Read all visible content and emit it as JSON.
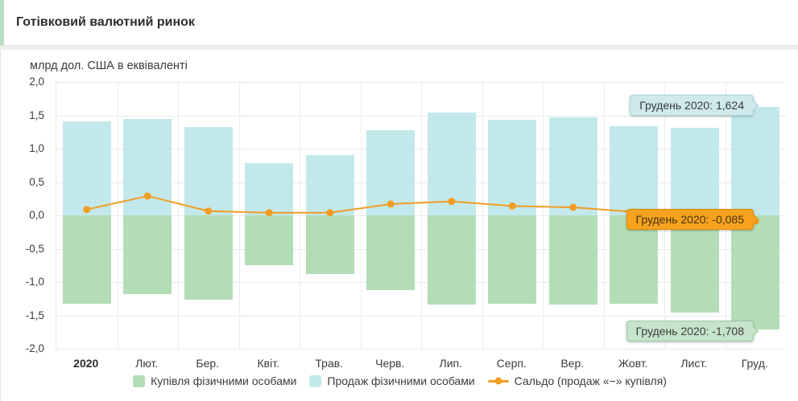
{
  "header": {
    "title": "Готівковий валютний ринок"
  },
  "chart_data": {
    "type": "bar",
    "title": "Готівковий валютний ринок",
    "unit_label": "млрд дол. США в еквіваленті",
    "categories": [
      "2020",
      "Лют.",
      "Бер.",
      "Квіт.",
      "Трав.",
      "Черв.",
      "Лип.",
      "Серп.",
      "Вер.",
      "Жовт.",
      "Лист.",
      "Груд."
    ],
    "series": [
      {
        "name": "Купівля фізичними особами",
        "type": "bar",
        "color": "#b3ddb7",
        "values": [
          -1.33,
          -1.18,
          -1.27,
          -0.75,
          -0.88,
          -1.12,
          -1.34,
          -1.33,
          -1.34,
          -1.33,
          -1.46,
          -1.708
        ]
      },
      {
        "name": "Продаж фізичними особами",
        "type": "bar",
        "color": "#c3e8eb",
        "values": [
          1.41,
          1.45,
          1.33,
          0.78,
          0.9,
          1.28,
          1.54,
          1.43,
          1.47,
          1.34,
          1.31,
          1.624
        ]
      },
      {
        "name": "Сальдо (продаж «−» купівля)",
        "type": "line",
        "color": "#f09d24",
        "values": [
          0.088,
          0.29,
          0.065,
          0.04,
          0.04,
          0.17,
          0.21,
          0.14,
          0.12,
          0.05,
          -0.1,
          -0.085
        ]
      }
    ],
    "ylim": [
      -2.0,
      2.0
    ],
    "ytick_step": 0.5,
    "ytick_labels": [
      "2,0",
      "1,5",
      "1,0",
      "0,5",
      "0,0",
      "-0,5",
      "-1,0",
      "-1,5",
      "-2,0"
    ],
    "grid": true,
    "legend_position": "bottom",
    "highlighted_period": "Грудень 2020"
  },
  "tooltips": [
    {
      "id": "sell",
      "label": "Грудень 2020: 1,624",
      "bg": "#cfe9ec"
    },
    {
      "id": "saldo",
      "label": "Грудень 2020: -0,085",
      "bg": "#f8a21f"
    },
    {
      "id": "buy",
      "label": "Грудень 2020: -1,708",
      "bg": "#c6e4c9"
    }
  ],
  "colors": {
    "header_accent": "#b9dcc6",
    "buy_bar": "#b3ddb7",
    "sell_bar": "#c3e8eb",
    "saldo_line": "#f09d24",
    "grid": "#e7e9e9"
  }
}
